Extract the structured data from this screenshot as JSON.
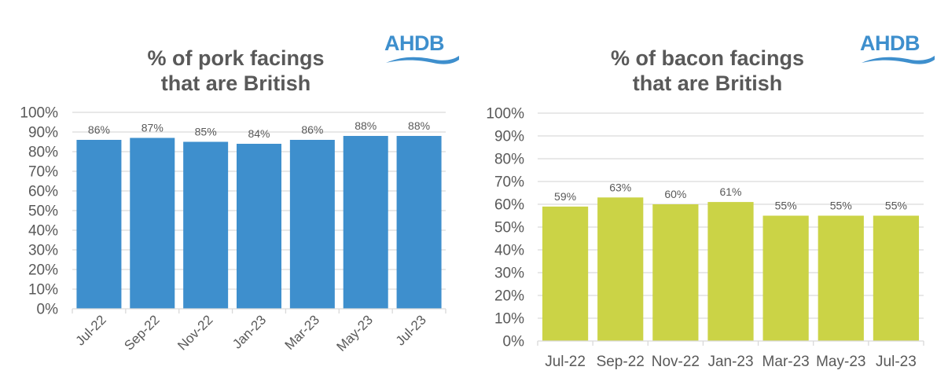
{
  "logo_text": "AHDB",
  "chart_data": [
    {
      "type": "bar",
      "title_line1": "% of pork facings",
      "title_line2": "that are British",
      "categories": [
        "Jul-22",
        "Sep-22",
        "Nov-22",
        "Jan-23",
        "Mar-23",
        "May-23",
        "Jul-23"
      ],
      "values": [
        86,
        87,
        85,
        84,
        86,
        88,
        88
      ],
      "labels": [
        "86%",
        "87%",
        "85%",
        "84%",
        "86%",
        "88%",
        "88%"
      ],
      "yticks": [
        "0%",
        "10%",
        "20%",
        "30%",
        "40%",
        "50%",
        "60%",
        "70%",
        "80%",
        "90%",
        "100%"
      ],
      "ylim": [
        0,
        100
      ],
      "xlabel": "",
      "ylabel": "",
      "grid": true,
      "bar_color": "#3e8fcd",
      "x_label_rotation": "45deg"
    },
    {
      "type": "bar",
      "title_line1": "% of bacon facings",
      "title_line2": "that are British",
      "categories": [
        "Jul-22",
        "Sep-22",
        "Nov-22",
        "Jan-23",
        "Mar-23",
        "May-23",
        "Jul-23"
      ],
      "values": [
        59,
        63,
        60,
        61,
        55,
        55,
        55
      ],
      "labels": [
        "59%",
        "63%",
        "60%",
        "61%",
        "55%",
        "55%",
        "55%"
      ],
      "yticks": [
        "0%",
        "10%",
        "20%",
        "30%",
        "40%",
        "50%",
        "60%",
        "70%",
        "80%",
        "90%",
        "100%"
      ],
      "ylim": [
        0,
        100
      ],
      "xlabel": "",
      "ylabel": "",
      "grid": true,
      "bar_color": "#cbd346",
      "x_label_rotation": "none"
    }
  ]
}
